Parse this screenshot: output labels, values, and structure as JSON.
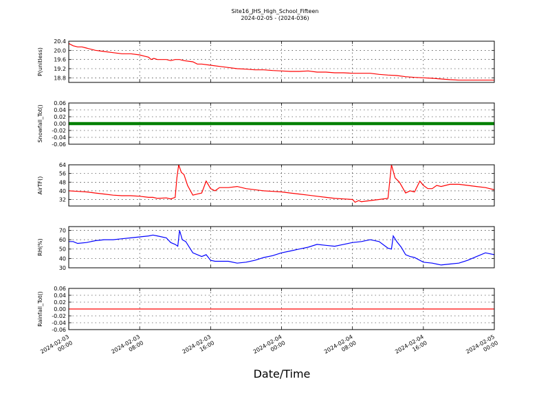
{
  "chart_data": {
    "title": "Site16_JHS_High_School_Fifteen",
    "subtitle": "2024-02-05 - (2024-036)",
    "xlabel": "Date/Time",
    "x_ticks": [
      {
        "line1": "2024-02-03",
        "line2": "00:00",
        "hours": 0
      },
      {
        "line1": "2024-02-03",
        "line2": "08:00",
        "hours": 8
      },
      {
        "line1": "2024-02-03",
        "line2": "16:00",
        "hours": 16
      },
      {
        "line1": "2024-02-04",
        "line2": "00:00",
        "hours": 24
      },
      {
        "line1": "2024-02-04",
        "line2": "08:00",
        "hours": 32
      },
      {
        "line1": "2024-02-04",
        "line2": "16:00",
        "hours": 40
      },
      {
        "line1": "2024-02-05",
        "line2": "00:00",
        "hours": 48
      }
    ],
    "x_range_hours": [
      0,
      48
    ],
    "grid": true,
    "panels": [
      {
        "type": "line",
        "ylabel": "P(unitless)",
        "color": "#ff0000",
        "ylim": [
          18.6,
          20.4
        ],
        "yticks": [
          "20.4",
          "20.0",
          "19.6",
          "19.2",
          "18.8"
        ],
        "ytick_values": [
          20.4,
          20.0,
          19.6,
          19.2,
          18.8
        ],
        "points": [
          [
            0,
            20.3
          ],
          [
            0.5,
            20.2
          ],
          [
            1,
            20.15
          ],
          [
            1.5,
            20.15
          ],
          [
            2,
            20.1
          ],
          [
            3,
            20.0
          ],
          [
            4,
            19.95
          ],
          [
            5,
            19.9
          ],
          [
            6,
            19.85
          ],
          [
            7,
            19.85
          ],
          [
            8,
            19.8
          ],
          [
            8.5,
            19.75
          ],
          [
            9,
            19.7
          ],
          [
            9.3,
            19.6
          ],
          [
            9.6,
            19.65
          ],
          [
            10,
            19.6
          ],
          [
            11,
            19.6
          ],
          [
            11.5,
            19.55
          ],
          [
            12,
            19.6
          ],
          [
            12.5,
            19.6
          ],
          [
            13,
            19.55
          ],
          [
            14,
            19.5
          ],
          [
            14.5,
            19.4
          ],
          [
            15,
            19.4
          ],
          [
            16,
            19.35
          ],
          [
            17,
            19.3
          ],
          [
            18,
            19.25
          ],
          [
            19,
            19.2
          ],
          [
            20,
            19.18
          ],
          [
            21,
            19.15
          ],
          [
            22,
            19.15
          ],
          [
            23,
            19.12
          ],
          [
            24,
            19.1
          ],
          [
            25,
            19.08
          ],
          [
            26,
            19.08
          ],
          [
            27,
            19.1
          ],
          [
            28,
            19.05
          ],
          [
            29,
            19.05
          ],
          [
            30,
            19.02
          ],
          [
            31,
            19.02
          ],
          [
            32,
            19.0
          ],
          [
            33,
            19.0
          ],
          [
            34,
            19.0
          ],
          [
            35,
            18.95
          ],
          [
            36,
            18.92
          ],
          [
            37,
            18.9
          ],
          [
            38,
            18.85
          ],
          [
            39,
            18.82
          ],
          [
            40,
            18.8
          ],
          [
            41,
            18.78
          ],
          [
            42,
            18.75
          ],
          [
            43,
            18.72
          ],
          [
            44,
            18.7
          ],
          [
            46,
            18.7
          ],
          [
            48,
            18.7
          ]
        ]
      },
      {
        "type": "line",
        "ylabel": "Snowfall_Tot()",
        "color": "#008000",
        "ylim": [
          -0.06,
          0.06
        ],
        "yticks": [
          "0.06",
          "0.04",
          "0.02",
          "0.00",
          "-0.02",
          "-0.04",
          "-0.06"
        ],
        "ytick_values": [
          0.06,
          0.04,
          0.02,
          0.0,
          -0.02,
          -0.04,
          -0.06
        ],
        "markers": true,
        "points": [
          [
            0,
            0
          ],
          [
            48,
            0
          ]
        ]
      },
      {
        "type": "line",
        "ylabel": "AirTF()",
        "color": "#ff0000",
        "ylim": [
          26,
          64
        ],
        "yticks": [
          "64",
          "56",
          "48",
          "40",
          "32"
        ],
        "ytick_values": [
          64,
          56,
          48,
          40,
          32
        ],
        "points": [
          [
            0,
            40
          ],
          [
            1,
            39.5
          ],
          [
            2,
            39
          ],
          [
            3,
            38
          ],
          [
            4,
            37
          ],
          [
            5,
            36
          ],
          [
            6,
            35.5
          ],
          [
            7,
            35.5
          ],
          [
            8,
            35
          ],
          [
            9,
            34
          ],
          [
            9.5,
            34
          ],
          [
            10,
            33
          ],
          [
            11,
            33.5
          ],
          [
            11.5,
            32.5
          ],
          [
            12,
            34
          ],
          [
            12.2,
            52
          ],
          [
            12.4,
            64
          ],
          [
            12.7,
            57
          ],
          [
            13,
            55
          ],
          [
            13.4,
            45
          ],
          [
            14,
            36
          ],
          [
            14.5,
            37
          ],
          [
            15,
            38
          ],
          [
            15.5,
            49
          ],
          [
            16,
            42
          ],
          [
            16.5,
            40
          ],
          [
            17,
            43
          ],
          [
            18,
            43
          ],
          [
            19,
            44
          ],
          [
            20,
            42
          ],
          [
            21,
            41
          ],
          [
            22,
            40
          ],
          [
            23,
            39.5
          ],
          [
            24,
            39
          ],
          [
            25,
            38
          ],
          [
            26,
            37
          ],
          [
            27,
            36
          ],
          [
            28,
            35
          ],
          [
            29,
            34
          ],
          [
            30,
            33
          ],
          [
            31,
            32.5
          ],
          [
            32,
            32
          ],
          [
            32.3,
            29.5
          ],
          [
            32.7,
            31
          ],
          [
            33,
            30
          ],
          [
            34,
            31
          ],
          [
            35,
            32
          ],
          [
            36,
            33
          ],
          [
            36.4,
            64
          ],
          [
            36.8,
            52
          ],
          [
            37.3,
            48
          ],
          [
            38,
            38
          ],
          [
            38.5,
            40
          ],
          [
            39,
            39
          ],
          [
            39.6,
            49
          ],
          [
            40,
            45
          ],
          [
            40.5,
            42
          ],
          [
            41,
            42
          ],
          [
            41.5,
            45
          ],
          [
            42,
            44
          ],
          [
            43,
            46
          ],
          [
            44,
            46
          ],
          [
            45,
            45
          ],
          [
            46,
            44
          ],
          [
            47,
            43
          ],
          [
            48,
            41
          ]
        ]
      },
      {
        "type": "line",
        "ylabel": "RH(%)",
        "color": "#0000ff",
        "ylim": [
          30,
          74
        ],
        "yticks": [
          "70",
          "60",
          "50",
          "40",
          "30"
        ],
        "ytick_values": [
          70,
          60,
          50,
          40,
          30
        ],
        "points": [
          [
            0,
            58
          ],
          [
            0.5,
            58
          ],
          [
            1,
            56
          ],
          [
            2,
            57
          ],
          [
            3,
            59
          ],
          [
            4,
            60
          ],
          [
            5,
            60
          ],
          [
            6,
            61
          ],
          [
            7,
            62
          ],
          [
            8,
            63
          ],
          [
            9,
            64
          ],
          [
            9.5,
            65
          ],
          [
            10,
            64
          ],
          [
            11,
            62
          ],
          [
            11.5,
            57
          ],
          [
            12,
            55
          ],
          [
            12.3,
            53
          ],
          [
            12.5,
            70
          ],
          [
            12.8,
            60
          ],
          [
            13.2,
            58
          ],
          [
            14,
            46
          ],
          [
            15,
            42
          ],
          [
            15.5,
            44
          ],
          [
            16,
            38
          ],
          [
            16.5,
            37
          ],
          [
            17,
            37
          ],
          [
            18,
            37
          ],
          [
            19,
            35
          ],
          [
            20,
            36
          ],
          [
            21,
            38
          ],
          [
            22,
            41
          ],
          [
            23,
            43
          ],
          [
            24,
            46
          ],
          [
            25,
            48
          ],
          [
            26,
            50
          ],
          [
            27,
            52
          ],
          [
            28,
            55
          ],
          [
            29,
            54
          ],
          [
            30,
            53
          ],
          [
            31,
            55
          ],
          [
            32,
            57
          ],
          [
            33,
            58
          ],
          [
            34,
            60
          ],
          [
            35,
            58
          ],
          [
            36,
            51
          ],
          [
            36.4,
            50
          ],
          [
            36.6,
            64
          ],
          [
            37,
            58
          ],
          [
            37.5,
            52
          ],
          [
            38,
            44
          ],
          [
            38.5,
            42
          ],
          [
            39,
            41
          ],
          [
            40,
            36
          ],
          [
            41,
            35
          ],
          [
            42,
            33
          ],
          [
            43,
            34
          ],
          [
            44,
            35
          ],
          [
            45,
            38
          ],
          [
            46,
            42
          ],
          [
            47,
            46
          ],
          [
            48,
            44
          ]
        ]
      },
      {
        "type": "line",
        "ylabel": "Rainfall_Tot()",
        "color": "#ff0000",
        "ylim": [
          -0.06,
          0.06
        ],
        "yticks": [
          "0.06",
          "0.04",
          "0.02",
          "0.00",
          "-0.02",
          "-0.04",
          "-0.06"
        ],
        "ytick_values": [
          0.06,
          0.04,
          0.02,
          0.0,
          -0.02,
          -0.04,
          -0.06
        ],
        "points": [
          [
            0,
            0
          ],
          [
            48,
            0
          ]
        ]
      }
    ]
  }
}
